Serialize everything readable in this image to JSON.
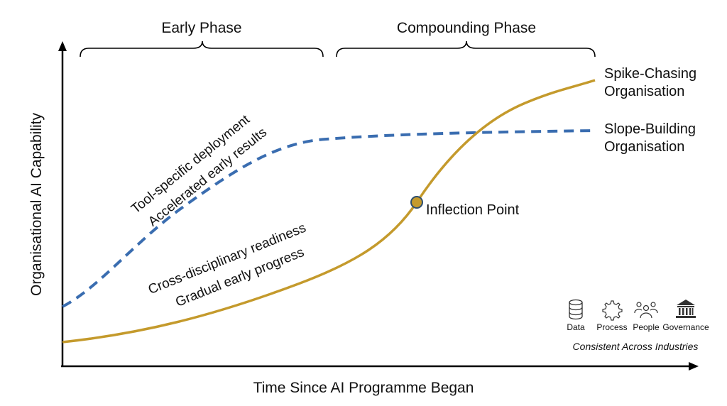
{
  "phases": {
    "early": "Early Phase",
    "compounding": "Compounding Phase"
  },
  "axes": {
    "y_label": "Organisational AI Capability",
    "x_label": "Time Since AI Programme Began"
  },
  "series": {
    "spike": {
      "label_line1": "Spike-Chasing",
      "label_line2": "Organisation",
      "color": "#C49A2C",
      "style": "solid"
    },
    "slope": {
      "label_line1": "Slope-Building",
      "label_line2": "Organisation",
      "color": "#3A6DB0",
      "style": "dashed"
    }
  },
  "annotations": {
    "blue_line1": "Tool-specific deployment",
    "blue_line2": "Accelerated early results",
    "gold_line1": "Cross-disciplinary readiness",
    "gold_line2": "Gradual early progress",
    "inflection": "Inflection Point"
  },
  "legend": {
    "icons": [
      {
        "icon": "database-icon",
        "label": "Data"
      },
      {
        "icon": "gear-icon",
        "label": "Process"
      },
      {
        "icon": "people-icon",
        "label": "People"
      },
      {
        "icon": "bank-icon",
        "label": "Governance"
      }
    ],
    "caption": "Consistent Across Industries"
  }
}
